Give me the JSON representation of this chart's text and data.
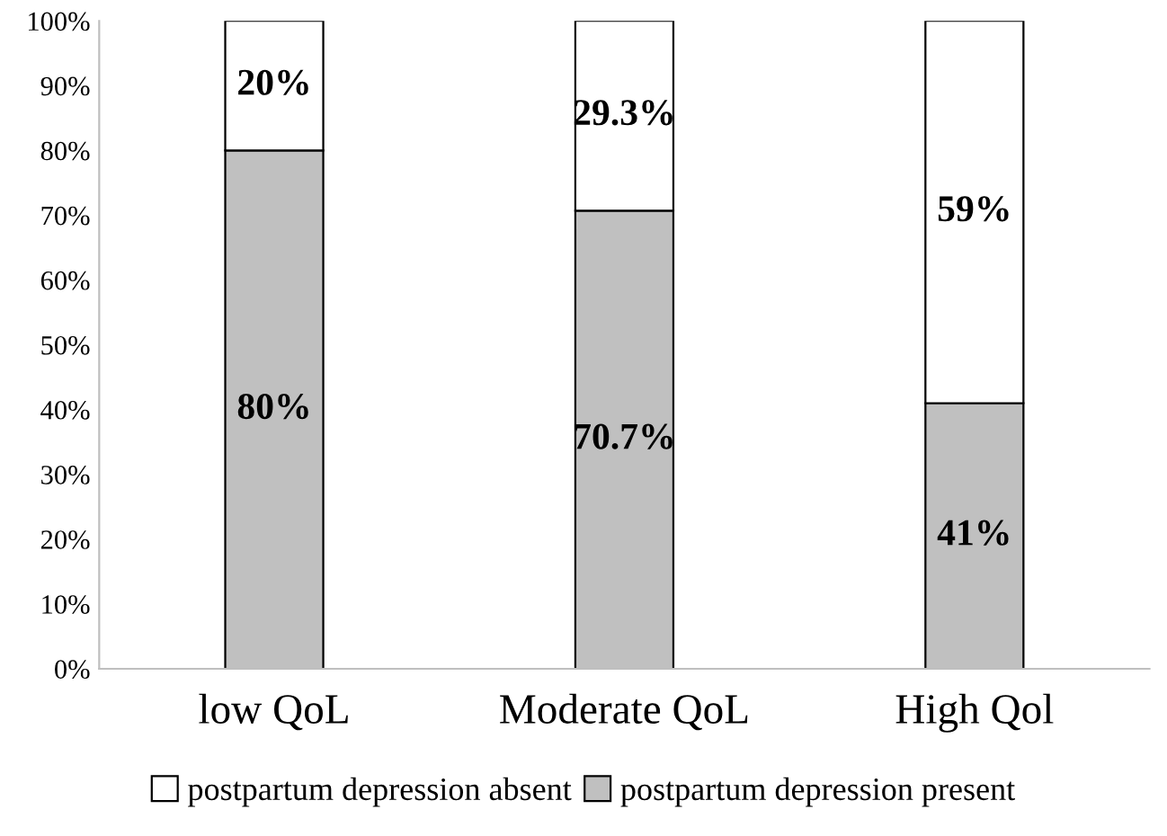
{
  "chart_data": {
    "type": "bar",
    "stacked": true,
    "categories": [
      "low QoL",
      "Moderate QoL",
      "High Qol"
    ],
    "series": [
      {
        "name": "postpartum depression present",
        "color": "#c0c0c0",
        "values": [
          80,
          70.7,
          41
        ],
        "value_labels": [
          "80%",
          "70.7%",
          "41%"
        ]
      },
      {
        "name": "postpartum depression absent",
        "color": "#ffffff",
        "values": [
          20,
          29.3,
          59
        ],
        "value_labels": [
          "20%",
          "29.3%",
          "59%"
        ]
      }
    ],
    "ylim": [
      0,
      100
    ],
    "yticks": [
      {
        "value": 0,
        "label": "0%"
      },
      {
        "value": 10,
        "label": "10%"
      },
      {
        "value": 20,
        "label": "20%"
      },
      {
        "value": 30,
        "label": "30%"
      },
      {
        "value": 40,
        "label": "40%"
      },
      {
        "value": 50,
        "label": "50%"
      },
      {
        "value": 60,
        "label": "60%"
      },
      {
        "value": 70,
        "label": "70%"
      },
      {
        "value": 80,
        "label": "80%"
      },
      {
        "value": 90,
        "label": "90%"
      },
      {
        "value": 100,
        "label": "100%"
      }
    ],
    "grid": false,
    "legend": "bottom"
  }
}
